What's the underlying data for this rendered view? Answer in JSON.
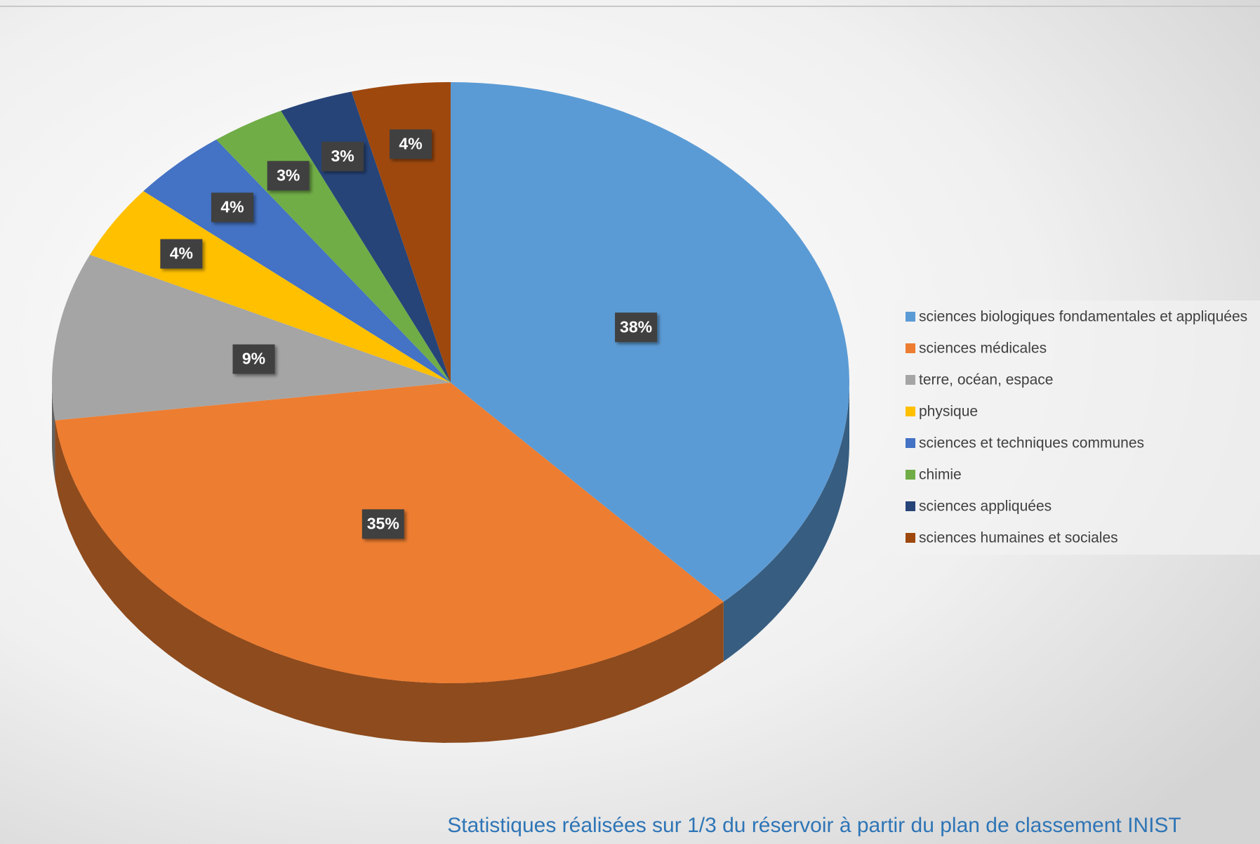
{
  "chart_data": {
    "type": "pie",
    "categories": [
      "sciences biologiques fondamentales et appliquées",
      "sciences médicales",
      "terre, océan, espace",
      "physique",
      "sciences et techniques communes",
      "chimie",
      "sciences appliquées",
      "sciences humaines et sociales"
    ],
    "values": [
      38,
      35,
      9,
      4,
      4,
      3,
      3,
      4
    ],
    "value_labels": [
      "38%",
      "35%",
      "9%",
      "4%",
      "4%",
      "3%",
      "3%",
      "4%"
    ],
    "colors": [
      "#5b9bd5",
      "#ed7d31",
      "#a5a5a5",
      "#ffc000",
      "#4472c4",
      "#70ad47",
      "#264478",
      "#9e480e"
    ],
    "legend": "right",
    "annotation": "Statistiques réalisées sur 1/3 du réservoir à partir du plan de classement INIST"
  }
}
